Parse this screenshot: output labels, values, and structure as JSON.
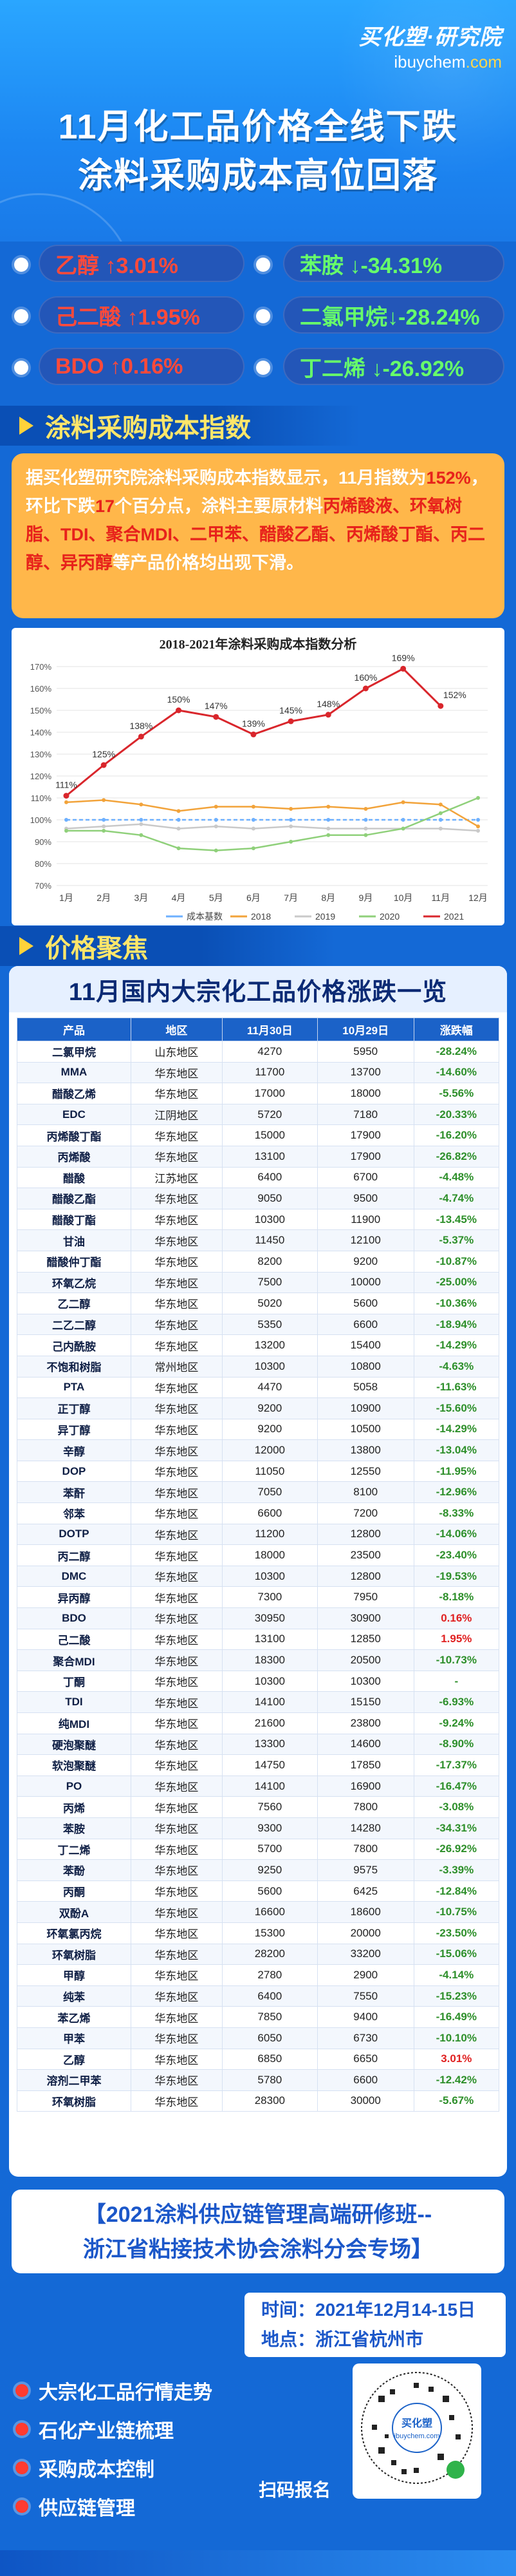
{
  "logo": {
    "brand": "买化塑·研究院",
    "domain_prefix": "ibuychem",
    "domain_suffix": ".com"
  },
  "headline": {
    "line1": "11月化工品价格全线下跌",
    "line2": "涂料采购成本高位回落"
  },
  "stats": {
    "left": [
      {
        "label": "乙醇 ↑3.01%"
      },
      {
        "label": "己二酸 ↑1.95%"
      },
      {
        "label": "BDO ↑0.16%"
      }
    ],
    "right": [
      {
        "label": "苯胺 ↓-34.31%"
      },
      {
        "label": "二氯甲烷↓-28.24%"
      },
      {
        "label": "丁二烯 ↓-26.92%"
      }
    ]
  },
  "section1": {
    "title": "涂料采购成本指数"
  },
  "summary": {
    "p1": "据买化塑研究院涂料采购成本指数显示，11月指数为",
    "v1": "152%",
    "p2": "，环比下跌",
    "v2": "17",
    "p3": "个百分点，涂料主要原材料",
    "v3": "丙烯酸丁酯",
    "p4": "、",
    "items": "丙烯酸液、环氧树脂、TDI、聚合MDI、二甲苯、醋酸乙酯、丙烯酸丁酯、丙二醇、异丙醇",
    "p5": "等产品价格均出现下滑。"
  },
  "chart_data": {
    "type": "line",
    "title": "2018-2021年涂料采购成本指数分析",
    "categories": [
      "1月",
      "2月",
      "3月",
      "4月",
      "5月",
      "6月",
      "7月",
      "8月",
      "9月",
      "10月",
      "11月",
      "12月"
    ],
    "ylim": [
      70,
      170
    ],
    "yticks": [
      "70%",
      "80%",
      "90%",
      "100%",
      "110%",
      "120%",
      "130%",
      "140%",
      "150%",
      "160%",
      "170%"
    ],
    "series": [
      {
        "name": "成本基数",
        "color": "#6db0ff",
        "values": [
          100,
          100,
          100,
          100,
          100,
          100,
          100,
          100,
          100,
          100,
          100,
          100
        ]
      },
      {
        "name": "2018",
        "color": "#f2a33a",
        "values": [
          108,
          109,
          107,
          104,
          106,
          106,
          105,
          106,
          105,
          108,
          107,
          97
        ]
      },
      {
        "name": "2019",
        "color": "#c9c9c9",
        "values": [
          96,
          97,
          98,
          96,
          97,
          96,
          97,
          96,
          96,
          96,
          96,
          95
        ]
      },
      {
        "name": "2020",
        "color": "#8fd07a",
        "values": [
          95,
          95,
          93,
          87,
          86,
          87,
          90,
          93,
          93,
          96,
          103,
          110
        ]
      },
      {
        "name": "2021",
        "color": "#d9262c",
        "values": [
          111,
          125,
          138,
          150,
          147,
          139,
          145,
          148,
          160,
          169,
          152,
          null
        ]
      }
    ],
    "point_labels": [
      "111%",
      "125%",
      "138%",
      "150%",
      "147%",
      "139%",
      "145%",
      "148%",
      "160%",
      "169%",
      "152%"
    ],
    "grid": true,
    "legend": "bottom"
  },
  "section2": {
    "title": "价格聚焦"
  },
  "table": {
    "title": "11月国内大宗化工品价格涨跌一览",
    "headers": [
      "产品",
      "地区",
      "11月30日",
      "10月29日",
      "涨跌幅"
    ],
    "rows": [
      [
        "二氯甲烷",
        "山东地区",
        "4270",
        "5950",
        "-28.24%"
      ],
      [
        "MMA",
        "华东地区",
        "11700",
        "13700",
        "-14.60%"
      ],
      [
        "醋酸乙烯",
        "华东地区",
        "17000",
        "18000",
        "-5.56%"
      ],
      [
        "EDC",
        "江阴地区",
        "5720",
        "7180",
        "-20.33%"
      ],
      [
        "丙烯酸丁酯",
        "华东地区",
        "15000",
        "17900",
        "-16.20%"
      ],
      [
        "丙烯酸",
        "华东地区",
        "13100",
        "17900",
        "-26.82%"
      ],
      [
        "醋酸",
        "江苏地区",
        "6400",
        "6700",
        "-4.48%"
      ],
      [
        "醋酸乙酯",
        "华东地区",
        "9050",
        "9500",
        "-4.74%"
      ],
      [
        "醋酸丁酯",
        "华东地区",
        "10300",
        "11900",
        "-13.45%"
      ],
      [
        "甘油",
        "华东地区",
        "11450",
        "12100",
        "-5.37%"
      ],
      [
        "醋酸仲丁酯",
        "华东地区",
        "8200",
        "9200",
        "-10.87%"
      ],
      [
        "环氧乙烷",
        "华东地区",
        "7500",
        "10000",
        "-25.00%"
      ],
      [
        "乙二醇",
        "华东地区",
        "5020",
        "5600",
        "-10.36%"
      ],
      [
        "二乙二醇",
        "华东地区",
        "5350",
        "6600",
        "-18.94%"
      ],
      [
        "己内酰胺",
        "华东地区",
        "13200",
        "15400",
        "-14.29%"
      ],
      [
        "不饱和树脂",
        "常州地区",
        "10300",
        "10800",
        "-4.63%"
      ],
      [
        "PTA",
        "华东地区",
        "4470",
        "5058",
        "-11.63%"
      ],
      [
        "正丁醇",
        "华东地区",
        "9200",
        "10900",
        "-15.60%"
      ],
      [
        "异丁醇",
        "华东地区",
        "9200",
        "10500",
        "-14.29%"
      ],
      [
        "辛醇",
        "华东地区",
        "12000",
        "13800",
        "-13.04%"
      ],
      [
        "DOP",
        "华东地区",
        "11050",
        "12550",
        "-11.95%"
      ],
      [
        "苯酐",
        "华东地区",
        "7050",
        "8100",
        "-12.96%"
      ],
      [
        "邻苯",
        "华东地区",
        "6600",
        "7200",
        "-8.33%"
      ],
      [
        "DOTP",
        "华东地区",
        "11200",
        "12800",
        "-14.06%"
      ],
      [
        "丙二醇",
        "华东地区",
        "18000",
        "23500",
        "-23.40%"
      ],
      [
        "DMC",
        "华东地区",
        "10300",
        "12800",
        "-19.53%"
      ],
      [
        "异丙醇",
        "华东地区",
        "7300",
        "7950",
        "-8.18%"
      ],
      [
        "BDO",
        "华东地区",
        "30950",
        "30900",
        "0.16%"
      ],
      [
        "己二酸",
        "华东地区",
        "13100",
        "12850",
        "1.95%"
      ],
      [
        "聚合MDI",
        "华东地区",
        "18300",
        "20500",
        "-10.73%"
      ],
      [
        "丁酮",
        "华东地区",
        "10300",
        "10300",
        "-"
      ],
      [
        "TDI",
        "华东地区",
        "14100",
        "15150",
        "-6.93%"
      ],
      [
        "纯MDI",
        "华东地区",
        "21600",
        "23800",
        "-9.24%"
      ],
      [
        "硬泡聚醚",
        "华东地区",
        "13300",
        "14600",
        "-8.90%"
      ],
      [
        "软泡聚醚",
        "华东地区",
        "14750",
        "17850",
        "-17.37%"
      ],
      [
        "PO",
        "华东地区",
        "14100",
        "16900",
        "-16.47%"
      ],
      [
        "丙烯",
        "华东地区",
        "7560",
        "7800",
        "-3.08%"
      ],
      [
        "苯胺",
        "华东地区",
        "9300",
        "14280",
        "-34.31%"
      ],
      [
        "丁二烯",
        "华东地区",
        "5700",
        "7800",
        "-26.92%"
      ],
      [
        "苯酚",
        "华东地区",
        "9250",
        "9575",
        "-3.39%"
      ],
      [
        "丙酮",
        "华东地区",
        "5600",
        "6425",
        "-12.84%"
      ],
      [
        "双酚A",
        "华东地区",
        "16600",
        "18600",
        "-10.75%"
      ],
      [
        "环氧氯丙烷",
        "华东地区",
        "15300",
        "20000",
        "-23.50%"
      ],
      [
        "环氧树脂",
        "华东地区",
        "28200",
        "33200",
        "-15.06%"
      ],
      [
        "甲醇",
        "华东地区",
        "2780",
        "2900",
        "-4.14%"
      ],
      [
        "纯苯",
        "华东地区",
        "6400",
        "7550",
        "-15.23%"
      ],
      [
        "苯乙烯",
        "华东地区",
        "7850",
        "9400",
        "-16.49%"
      ],
      [
        "甲苯",
        "华东地区",
        "6050",
        "6730",
        "-10.10%"
      ],
      [
        "乙醇",
        "华东地区",
        "6850",
        "6650",
        "3.01%"
      ],
      [
        "溶剂二甲苯",
        "华东地区",
        "5780",
        "6600",
        "-12.42%"
      ],
      [
        "环氧树脂",
        "华东地区",
        "28300",
        "30000",
        "-5.67%"
      ]
    ]
  },
  "training": {
    "line1": "【2021涂料供应链管理高端研修班--",
    "line2": "浙江省粘接技术协会涂料分会专场】",
    "time": "时间：2021年12月14-15日",
    "place": "地点：浙江省杭州市",
    "topics": [
      "大宗化工品行情走势",
      "石化产业链梳理",
      "采购成本控制",
      "供应链管理"
    ],
    "qr_label": "扫码报名",
    "qr_brand": "买化塑",
    "qr_domain": "ibuychem.com"
  }
}
